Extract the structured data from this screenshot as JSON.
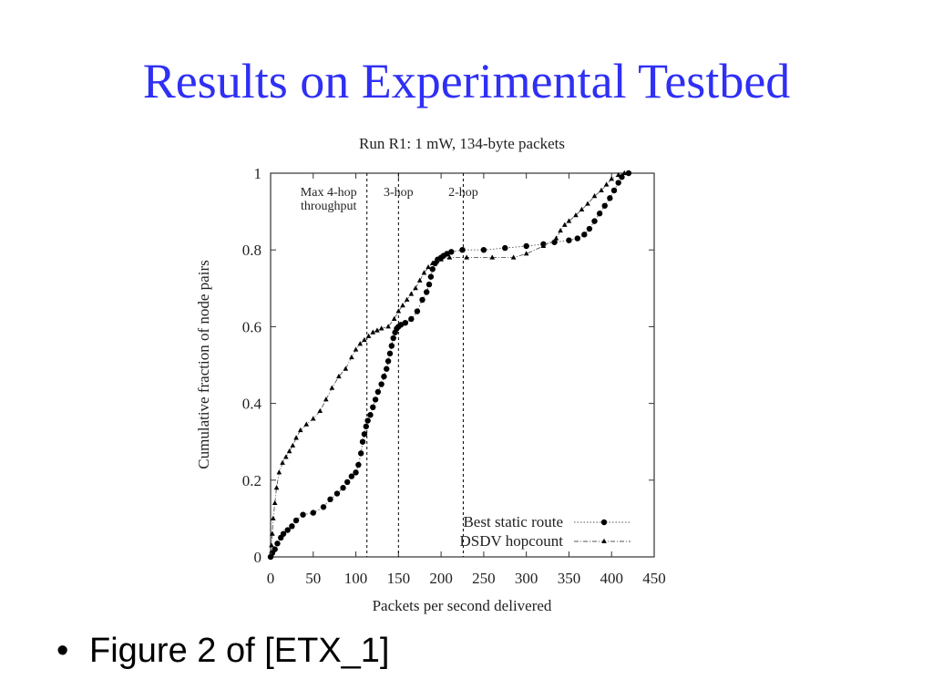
{
  "slide": {
    "title": "Results on Experimental Testbed",
    "bullet_symbol": "•",
    "bullet_text": "Figure 2 of [ETX_1]"
  },
  "chart_data": {
    "type": "line",
    "title": "Run R1: 1 mW, 134-byte packets",
    "xlabel": "Packets per second delivered",
    "ylabel": "Cumulative fraction of node pairs",
    "xlim": [
      0,
      450
    ],
    "ylim": [
      0,
      1
    ],
    "xticks": [
      "0",
      "50",
      "100",
      "150",
      "200",
      "250",
      "300",
      "350",
      "400",
      "450"
    ],
    "yticks": [
      "0",
      "0.2",
      "0.4",
      "0.6",
      "0.8",
      "1"
    ],
    "grid": false,
    "legend_position": "bottom-right",
    "vlines": [
      {
        "x": 113,
        "label_lines": [
          "Max 4-hop",
          "throughput"
        ]
      },
      {
        "x": 150,
        "label_lines": [
          "3-hop"
        ]
      },
      {
        "x": 226,
        "label_lines": [
          "2-hop"
        ]
      }
    ],
    "series": [
      {
        "name": "Best static route",
        "marker": "circle",
        "line_style": "dotted",
        "color": "#000000",
        "x": [
          0,
          2,
          5,
          8,
          12,
          15,
          20,
          25,
          30,
          38,
          50,
          62,
          70,
          78,
          85,
          90,
          95,
          100,
          103,
          106,
          108,
          110,
          112,
          114,
          117,
          120,
          123,
          126,
          130,
          133,
          136,
          138,
          140,
          142,
          144,
          146,
          148,
          150,
          153,
          158,
          165,
          172,
          178,
          183,
          186,
          188,
          190,
          193,
          196,
          200,
          203,
          207,
          212,
          225,
          250,
          275,
          300,
          320,
          333,
          350,
          360,
          368,
          374,
          380,
          386,
          392,
          398,
          403,
          408,
          412,
          420
        ],
        "y": [
          0.0,
          0.01,
          0.02,
          0.035,
          0.05,
          0.06,
          0.07,
          0.08,
          0.095,
          0.11,
          0.115,
          0.13,
          0.15,
          0.165,
          0.18,
          0.195,
          0.21,
          0.22,
          0.24,
          0.27,
          0.3,
          0.32,
          0.34,
          0.355,
          0.37,
          0.39,
          0.41,
          0.43,
          0.45,
          0.47,
          0.49,
          0.51,
          0.53,
          0.55,
          0.57,
          0.585,
          0.595,
          0.6,
          0.605,
          0.61,
          0.62,
          0.64,
          0.67,
          0.69,
          0.71,
          0.73,
          0.75,
          0.765,
          0.775,
          0.78,
          0.785,
          0.79,
          0.795,
          0.8,
          0.8,
          0.805,
          0.81,
          0.815,
          0.82,
          0.825,
          0.83,
          0.84,
          0.855,
          0.875,
          0.895,
          0.915,
          0.935,
          0.955,
          0.975,
          0.99,
          1.0
        ]
      },
      {
        "name": "DSDV hopcount",
        "marker": "triangle",
        "line_style": "dash-dot",
        "color": "#000000",
        "x": [
          0,
          1,
          2,
          3,
          5,
          7,
          10,
          14,
          18,
          22,
          26,
          30,
          35,
          42,
          50,
          58,
          65,
          72,
          80,
          88,
          95,
          100,
          105,
          110,
          115,
          120,
          125,
          130,
          138,
          145,
          150,
          155,
          160,
          165,
          170,
          175,
          180,
          185,
          190,
          195,
          200,
          210,
          230,
          260,
          285,
          300,
          320,
          335,
          340,
          345,
          350,
          358,
          365,
          372,
          380,
          388,
          394,
          400,
          408,
          415
        ],
        "y": [
          0.0,
          0.03,
          0.06,
          0.1,
          0.14,
          0.18,
          0.22,
          0.245,
          0.26,
          0.275,
          0.29,
          0.31,
          0.33,
          0.345,
          0.36,
          0.38,
          0.41,
          0.44,
          0.47,
          0.49,
          0.52,
          0.54,
          0.555,
          0.565,
          0.575,
          0.585,
          0.59,
          0.595,
          0.6,
          0.62,
          0.64,
          0.655,
          0.67,
          0.685,
          0.7,
          0.72,
          0.74,
          0.755,
          0.765,
          0.77,
          0.775,
          0.78,
          0.78,
          0.78,
          0.78,
          0.79,
          0.81,
          0.83,
          0.85,
          0.865,
          0.875,
          0.89,
          0.905,
          0.92,
          0.94,
          0.955,
          0.97,
          0.985,
          0.995,
          1.0
        ]
      }
    ]
  }
}
